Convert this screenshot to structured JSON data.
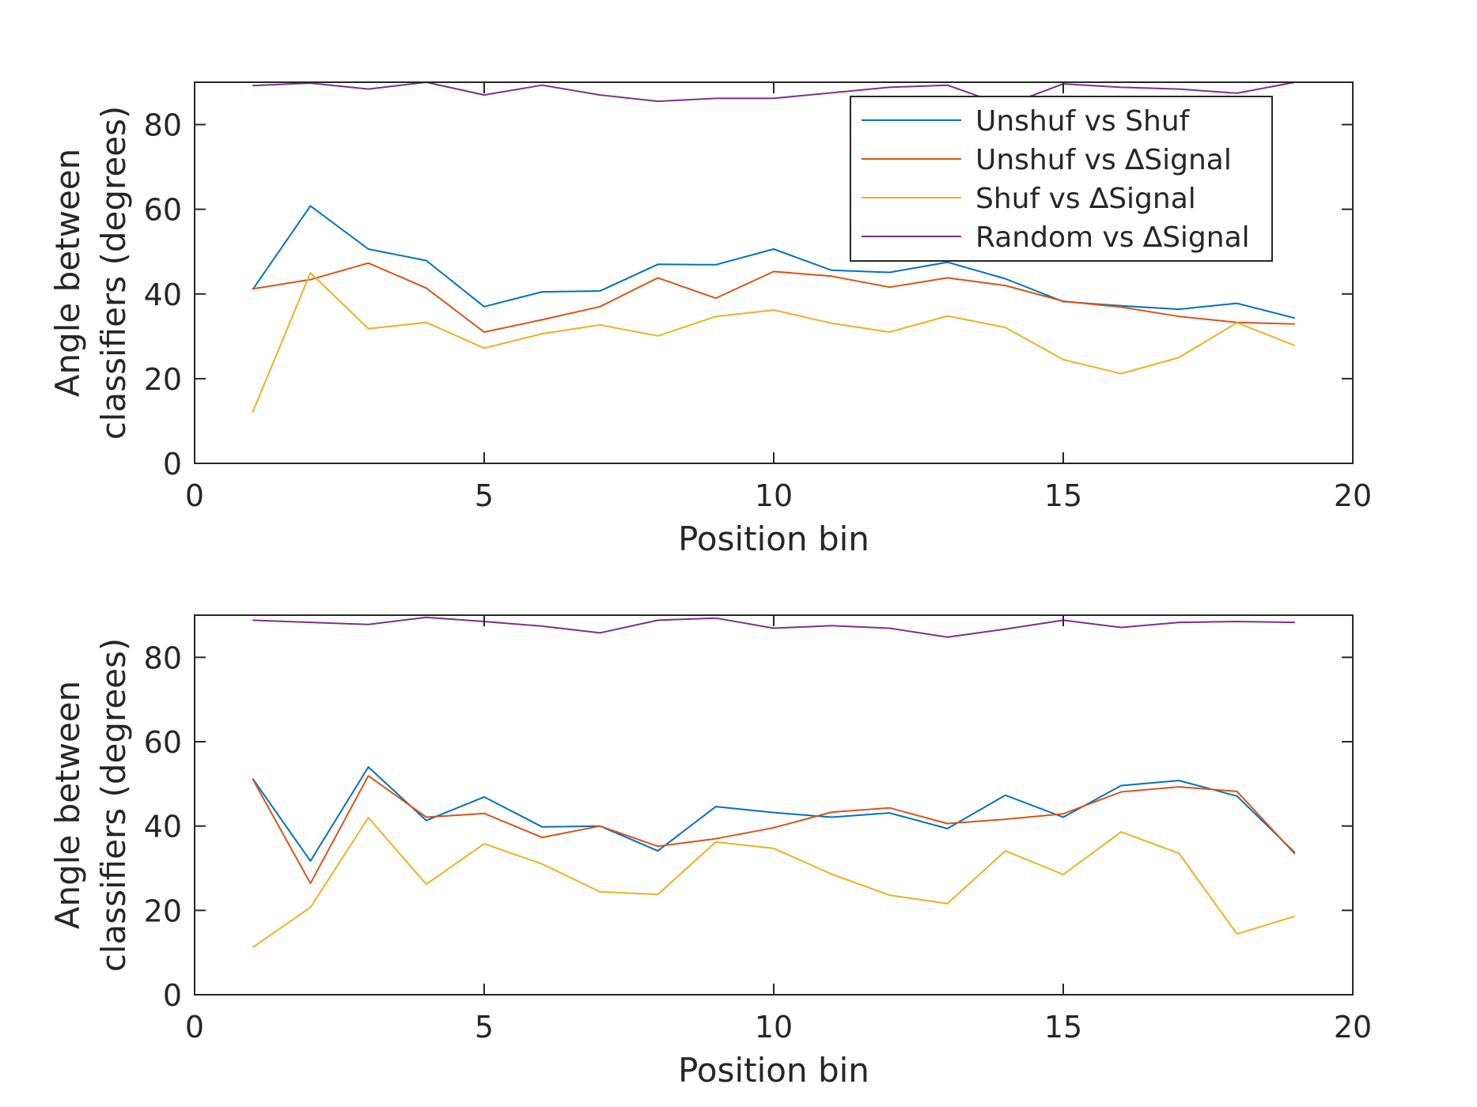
{
  "colors": {
    "unshuf_vs_shuf": "#0072BD",
    "unshuf_vs_dsignal": "#D95319",
    "shuf_vs_dsignal": "#EDB120",
    "random_vs_dsignal": "#7E2F8E",
    "axis": "#262626"
  },
  "legend": {
    "placement": "top-right of upper panel",
    "entries": [
      "Unshuf vs Shuf",
      "Unshuf vs ∆Signal",
      "Shuf vs ∆Signal",
      "Random vs ∆Signal"
    ]
  },
  "chart_data": [
    {
      "type": "line",
      "xlabel": "Position bin",
      "ylabel_lines": [
        "Angle between",
        "classifiers (degrees)"
      ],
      "xlim": [
        0,
        20
      ],
      "ylim": [
        0,
        90
      ],
      "xticks": [
        "0",
        "5",
        "10",
        "15",
        "20"
      ],
      "yticks": [
        "0",
        "20",
        "40",
        "60",
        "80"
      ],
      "grid": false,
      "x": [
        1,
        2,
        3,
        4,
        5,
        6,
        7,
        8,
        9,
        10,
        11,
        12,
        13,
        14,
        15,
        16,
        17,
        18,
        19
      ],
      "series": [
        {
          "name": "Unshuf vs Shuf",
          "values": [
            41,
            60.8,
            50.6,
            47.9,
            37,
            40.5,
            40.7,
            47,
            46.9,
            50.6,
            45.6,
            45.1,
            47.5,
            43.6,
            38.2,
            37.2,
            36.4,
            37.8,
            34.3
          ]
        },
        {
          "name": "Unshuf vs ∆Signal",
          "values": [
            41.2,
            43.4,
            47.3,
            41.4,
            31,
            33.9,
            37,
            43.8,
            39,
            45.3,
            44.2,
            41.6,
            43.8,
            42,
            38.3,
            36.9,
            34.7,
            33.3,
            32.9
          ]
        },
        {
          "name": "Shuf vs ∆Signal",
          "values": [
            12,
            45,
            31.8,
            33.3,
            27.2,
            30.6,
            32.7,
            30.1,
            34.7,
            36.2,
            33.1,
            31,
            34.8,
            32.1,
            24.5,
            21.2,
            25,
            33.2,
            27.8
          ]
        },
        {
          "name": "Random vs ∆Signal",
          "values": [
            89.2,
            89.8,
            88.4,
            90,
            87,
            89.3,
            87,
            85.5,
            86.2,
            86.2,
            87.5,
            88.8,
            89.3,
            84.5,
            89.6,
            88.8,
            88.4,
            87.4,
            90
          ]
        }
      ]
    },
    {
      "type": "line",
      "xlabel": "Position bin",
      "ylabel_lines": [
        "Angle between",
        "classifiers (degrees)"
      ],
      "xlim": [
        0,
        20
      ],
      "ylim": [
        0,
        90
      ],
      "xticks": [
        "0",
        "5",
        "10",
        "15",
        "20"
      ],
      "yticks": [
        "0",
        "20",
        "40",
        "60",
        "80"
      ],
      "grid": false,
      "x": [
        1,
        2,
        3,
        4,
        5,
        6,
        7,
        8,
        9,
        10,
        11,
        12,
        13,
        14,
        15,
        16,
        17,
        18,
        19
      ],
      "series": [
        {
          "name": "Unshuf vs Shuf",
          "values": [
            51.3,
            31.7,
            54,
            41.3,
            46.9,
            39.8,
            40,
            34.1,
            44.6,
            43.2,
            42.1,
            43.1,
            39.4,
            47.3,
            42.1,
            49.6,
            50.8,
            47.1,
            33.7
          ]
        },
        {
          "name": "Unshuf vs ∆Signal",
          "values": [
            51.2,
            26.4,
            51.9,
            42.1,
            43,
            37.3,
            40,
            35.2,
            37,
            39.6,
            43.3,
            44.3,
            40.6,
            41.6,
            42.9,
            48.1,
            49.3,
            48.2,
            33.4
          ]
        },
        {
          "name": "Shuf vs ∆Signal",
          "values": [
            11.2,
            20.7,
            42,
            26.2,
            35.8,
            31,
            24.4,
            23.8,
            36.2,
            34.7,
            28.6,
            23.6,
            21.6,
            34.1,
            28.5,
            38.6,
            33.5,
            14.4,
            18.6
          ]
        },
        {
          "name": "Random vs ∆Signal",
          "values": [
            88.8,
            88.3,
            87.8,
            89.5,
            88.5,
            87.4,
            85.8,
            88.8,
            89.3,
            86.9,
            87.5,
            86.9,
            84.8,
            86.7,
            88.8,
            87.1,
            88.3,
            88.5,
            88.3
          ]
        }
      ]
    }
  ]
}
